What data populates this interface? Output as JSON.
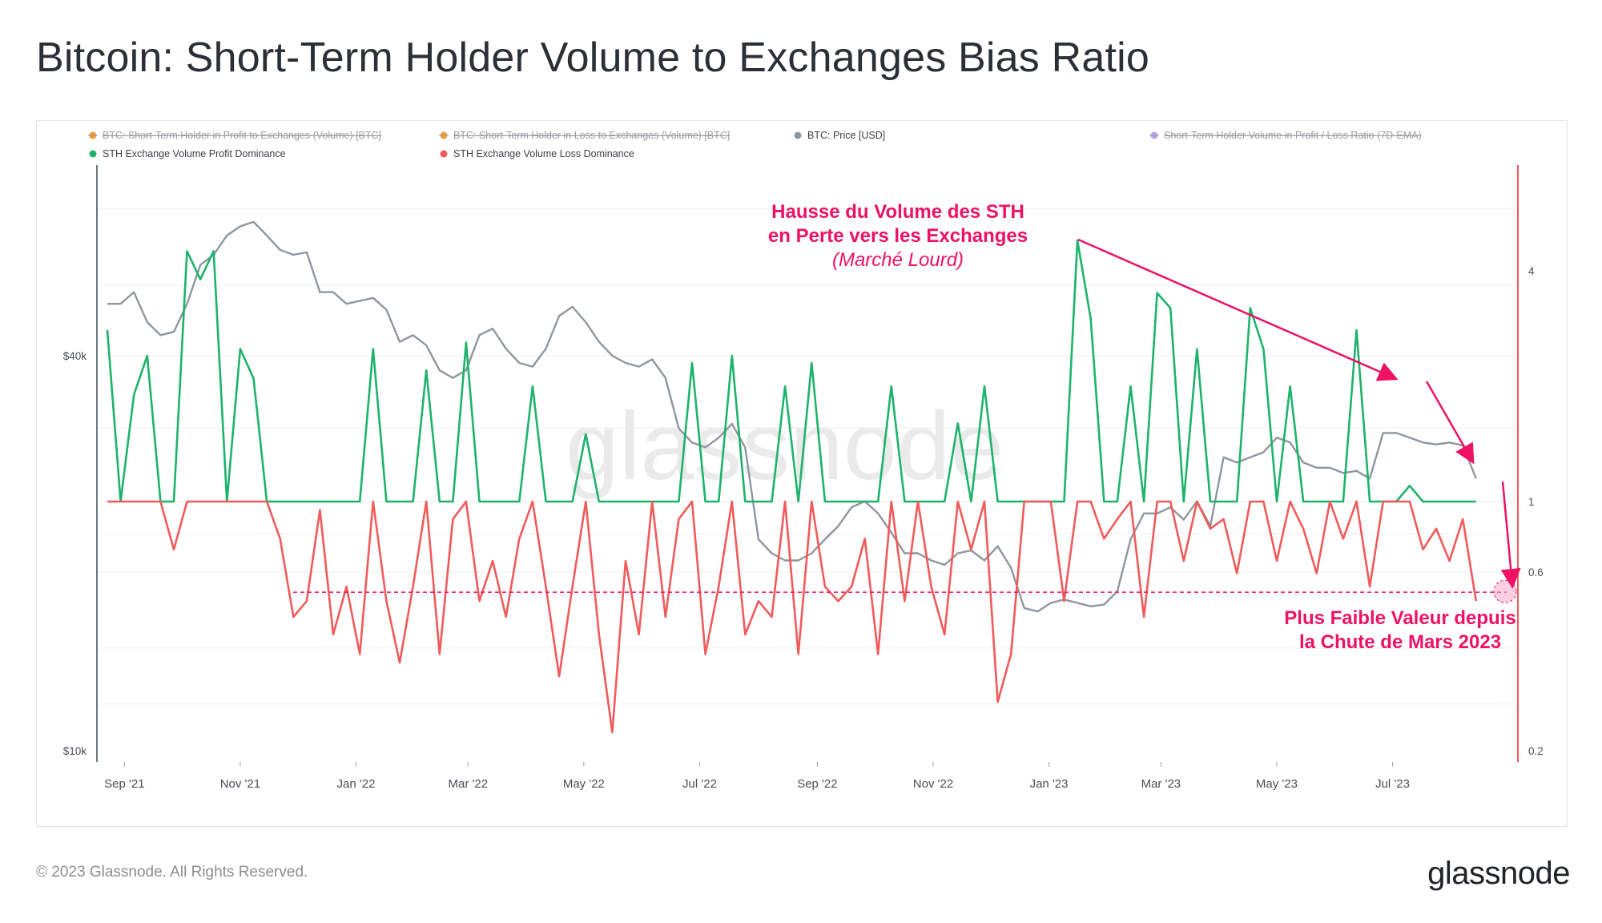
{
  "title": "Bitcoin: Short-Term Holder Volume to Exchanges Bias Ratio",
  "footer": "© 2023 Glassnode. All Rights Reserved.",
  "logo": "glassnode",
  "colors": {
    "profit": "#1db36b",
    "loss": "#f25a5a",
    "price": "#8f969e",
    "annotation": "#ee1166",
    "orange": "#f29b38",
    "purple": "#b9a6e6"
  },
  "chart_data": {
    "type": "line",
    "title": "Bitcoin: Short-Term Holder Volume to Exchanges Bias Ratio",
    "watermark": "glassnode",
    "legend": [
      {
        "label": "BTC: Short-Term Holder in Profit to Exchanges (Volume) [BTC]",
        "color": "#f29b38",
        "hidden": true
      },
      {
        "label": "BTC: Short-Term Holder in Loss to Exchanges (Volume) [BTC]",
        "color": "#f29b38",
        "hidden": true
      },
      {
        "label": "BTC: Price [USD]",
        "color": "#8f969e",
        "hidden": false
      },
      {
        "label": "Short-Term Holder Volume in Profit / Loss Ratio (7D-EMA)",
        "color": "#b9a6e6",
        "hidden": true
      },
      {
        "label": "STH Exchange Volume Profit Dominance",
        "color": "#1db36b",
        "hidden": false
      },
      {
        "label": "STH Exchange Volume Loss Dominance",
        "color": "#f25a5a",
        "hidden": false
      }
    ],
    "x_ticks": [
      "Sep '21",
      "Nov '21",
      "Jan '22",
      "Mar '22",
      "May '22",
      "Jul '22",
      "Sep '22",
      "Nov '22",
      "Jan '23",
      "Mar '23",
      "May '23",
      "Jul '23"
    ],
    "left_axis": {
      "scale": "log",
      "ticks": [
        "$40k",
        "$10k"
      ],
      "range_usd": [
        9500,
        75000
      ]
    },
    "right_axis": {
      "scale": "log",
      "ticks": [
        "4",
        "1",
        "0.6",
        "0.2"
      ],
      "range": [
        0.2,
        8
      ]
    },
    "x": [
      0,
      7,
      14,
      21,
      28,
      35,
      42,
      49,
      56,
      63,
      70,
      77,
      84,
      91,
      98,
      105,
      112,
      119,
      126,
      133,
      140,
      147,
      154,
      161,
      168,
      175,
      182,
      189,
      196,
      203,
      210,
      217,
      224,
      231,
      238,
      245,
      252,
      259,
      266,
      273,
      280,
      287,
      294,
      301,
      308,
      315,
      322,
      329,
      336,
      343,
      350,
      357,
      364,
      371,
      378,
      385,
      392,
      399,
      406,
      413,
      420,
      427,
      434,
      441,
      448,
      455,
      462,
      469,
      476,
      483,
      490,
      497,
      504,
      511,
      518,
      525,
      532,
      539,
      546,
      553,
      560,
      567,
      574,
      581,
      588,
      595,
      602,
      609,
      616,
      623,
      630,
      637,
      644,
      651,
      658,
      665,
      672,
      679,
      686,
      693,
      700,
      707,
      714,
      721
    ],
    "x_unit": "days since 2021-08-23",
    "series": [
      {
        "name": "BTC: Price [USD]",
        "axis": "left",
        "values": [
          48000,
          48000,
          50000,
          45000,
          43000,
          43500,
          48000,
          55000,
          57000,
          61000,
          63000,
          64000,
          61000,
          58000,
          57000,
          57500,
          50000,
          50000,
          48000,
          48500,
          49000,
          47000,
          42000,
          43000,
          41500,
          38000,
          37000,
          38000,
          43000,
          44000,
          41000,
          39000,
          38500,
          41000,
          46000,
          47500,
          45000,
          42000,
          40000,
          39000,
          38500,
          39500,
          37000,
          31000,
          29500,
          29000,
          30000,
          31500,
          29000,
          21000,
          20000,
          19500,
          19500,
          20000,
          21000,
          22000,
          23500,
          24000,
          23000,
          21500,
          20000,
          20000,
          19500,
          19200,
          20000,
          20200,
          19500,
          20500,
          19000,
          16500,
          16300,
          16800,
          17000,
          16800,
          16600,
          16700,
          17500,
          21000,
          23000,
          23000,
          23500,
          22500,
          24000,
          22000,
          28000,
          27500,
          28000,
          28500,
          30000,
          29500,
          27500,
          27000,
          27000,
          26500,
          26700,
          26000,
          30500,
          30500,
          30000,
          29500,
          29300,
          29500,
          29200,
          26000
        ]
      },
      {
        "name": "STH Exchange Volume Profit Dominance",
        "axis": "right",
        "values": [
          2.8,
          1.0,
          1.9,
          2.4,
          1.0,
          1.0,
          4.5,
          3.8,
          4.5,
          1.0,
          2.5,
          2.1,
          1.0,
          1.0,
          1.0,
          1.0,
          1.0,
          1.0,
          1.0,
          1.0,
          2.5,
          1.0,
          1.0,
          1.0,
          2.2,
          1.0,
          1.0,
          2.6,
          1.0,
          1.0,
          1.0,
          1.0,
          2.0,
          1.0,
          1.0,
          1.0,
          1.5,
          1.0,
          1.0,
          1.0,
          1.0,
          1.0,
          1.0,
          1.0,
          2.3,
          1.0,
          1.0,
          2.4,
          1.0,
          1.0,
          1.0,
          2.0,
          1.0,
          2.3,
          1.0,
          1.0,
          1.0,
          1.0,
          1.0,
          2.0,
          1.0,
          1.0,
          1.0,
          1.0,
          1.6,
          1.0,
          2.0,
          1.0,
          1.0,
          1.0,
          1.0,
          1.0,
          1.0,
          4.8,
          3.0,
          1.0,
          1.0,
          2.0,
          1.0,
          3.5,
          3.2,
          1.0,
          2.5,
          1.0,
          1.0,
          1.0,
          3.2,
          2.5,
          1.0,
          2.0,
          1.0,
          1.0,
          1.0,
          1.0,
          2.8,
          1.0,
          1.0,
          1.0,
          1.1,
          1.0,
          1.0,
          1.0,
          1.0,
          1.0
        ]
      },
      {
        "name": "STH Exchange Volume Loss Dominance",
        "axis": "right",
        "values": [
          1.0,
          1.0,
          1.0,
          1.0,
          1.0,
          0.75,
          1.0,
          1.0,
          1.0,
          1.0,
          1.0,
          1.0,
          1.0,
          0.8,
          0.5,
          0.55,
          0.95,
          0.45,
          0.6,
          0.4,
          1.0,
          0.55,
          0.38,
          0.6,
          1.0,
          0.4,
          0.9,
          1.0,
          0.55,
          0.7,
          0.5,
          0.8,
          1.0,
          0.6,
          0.35,
          0.6,
          1.0,
          0.45,
          0.25,
          0.7,
          0.45,
          1.0,
          0.5,
          0.9,
          1.0,
          0.4,
          0.6,
          1.0,
          0.45,
          0.55,
          0.5,
          1.0,
          0.4,
          1.0,
          0.6,
          0.55,
          0.6,
          0.8,
          0.4,
          1.0,
          0.55,
          1.0,
          0.6,
          0.45,
          1.0,
          0.75,
          1.0,
          0.3,
          0.4,
          1.0,
          1.0,
          1.0,
          0.55,
          1.0,
          1.0,
          0.8,
          0.9,
          1.0,
          0.5,
          1.0,
          1.0,
          0.7,
          1.0,
          0.85,
          0.9,
          0.65,
          1.0,
          1.0,
          0.7,
          1.0,
          0.85,
          0.65,
          1.0,
          0.8,
          1.0,
          0.6,
          1.0,
          1.0,
          1.0,
          0.75,
          0.85,
          0.7,
          0.9,
          0.55
        ]
      }
    ],
    "reference_line": {
      "value": 0.58,
      "style": "dashed",
      "color": "#ee1166"
    },
    "annotations": {
      "heavy_market": {
        "line1": "Hausse du Volume des STH",
        "line2": "en Perte vers les Exchanges",
        "line3": "(Marché Lourd)"
      },
      "lowest_value": {
        "line1": "Plus Faible Valeur depuis",
        "line2": "la Chute de Mars 2023"
      }
    }
  }
}
